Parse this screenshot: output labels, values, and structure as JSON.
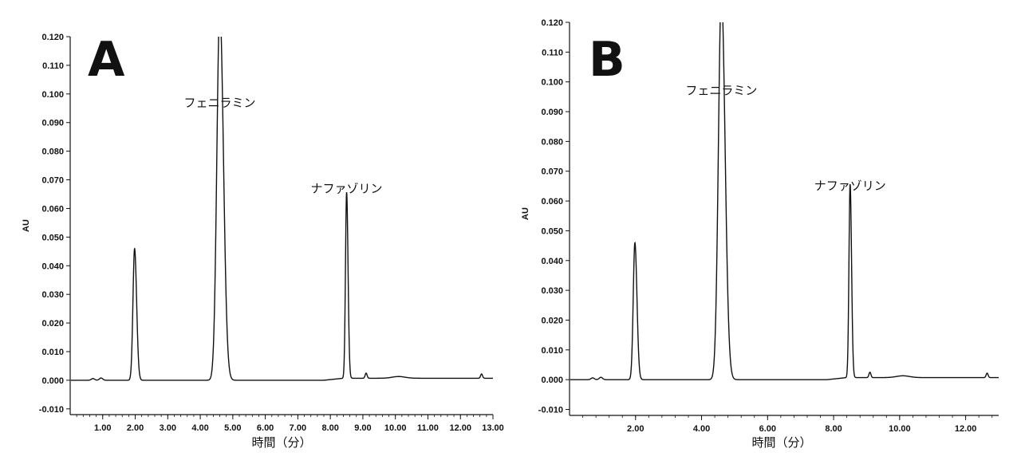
{
  "chart_data": [
    {
      "type": "line",
      "panel_label": "A",
      "xlabel": "時間（分）",
      "ylabel": "AU",
      "xlim": [
        0,
        13.0
      ],
      "ylim": [
        -0.012,
        0.12
      ],
      "x_ticks": [
        "1.00",
        "2.00",
        "3.00",
        "4.00",
        "5.00",
        "6.00",
        "7.00",
        "8.00",
        "9.00",
        "10.00",
        "11.00",
        "12.00",
        "13.00"
      ],
      "y_ticks": [
        "-0.010",
        "0.000",
        "0.010",
        "0.020",
        "0.030",
        "0.040",
        "0.050",
        "0.060",
        "0.070",
        "0.080",
        "0.090",
        "0.100",
        "0.110",
        "0.120"
      ],
      "annotations": [
        {
          "text": "フェニラミン",
          "x": 4.6,
          "y": 0.1
        },
        {
          "text": "ナファゾリン",
          "x": 8.5,
          "y": 0.07
        }
      ],
      "series": [
        {
          "peaks": [
            {
              "rt": 1.98,
              "height": 0.046,
              "width": 0.05
            },
            {
              "rt": 4.6,
              "height": 0.13,
              "width": 0.09
            },
            {
              "rt": 8.5,
              "height": 0.065,
              "width": 0.035
            }
          ]
        }
      ]
    },
    {
      "type": "line",
      "panel_label": "B",
      "xlabel": "時間（分）",
      "ylabel": "AU",
      "xlim": [
        0,
        13.0
      ],
      "ylim": [
        -0.012,
        0.12
      ],
      "x_ticks": [
        "2.00",
        "4.00",
        "6.00",
        "8.00",
        "10.00",
        "12.00"
      ],
      "y_ticks": [
        "-0.010",
        "0.000",
        "0.010",
        "0.020",
        "0.030",
        "0.040",
        "0.050",
        "0.060",
        "0.070",
        "0.080",
        "0.090",
        "0.100",
        "0.110",
        "0.120"
      ],
      "annotations": [
        {
          "text": "フェニラミン",
          "x": 4.6,
          "y": 0.1
        },
        {
          "text": "ナファゾリン",
          "x": 8.5,
          "y": 0.068
        }
      ],
      "series": [
        {
          "peaks": [
            {
              "rt": 1.98,
              "height": 0.046,
              "width": 0.05
            },
            {
              "rt": 4.6,
              "height": 0.13,
              "width": 0.09
            },
            {
              "rt": 8.5,
              "height": 0.065,
              "width": 0.035
            }
          ]
        }
      ]
    }
  ]
}
